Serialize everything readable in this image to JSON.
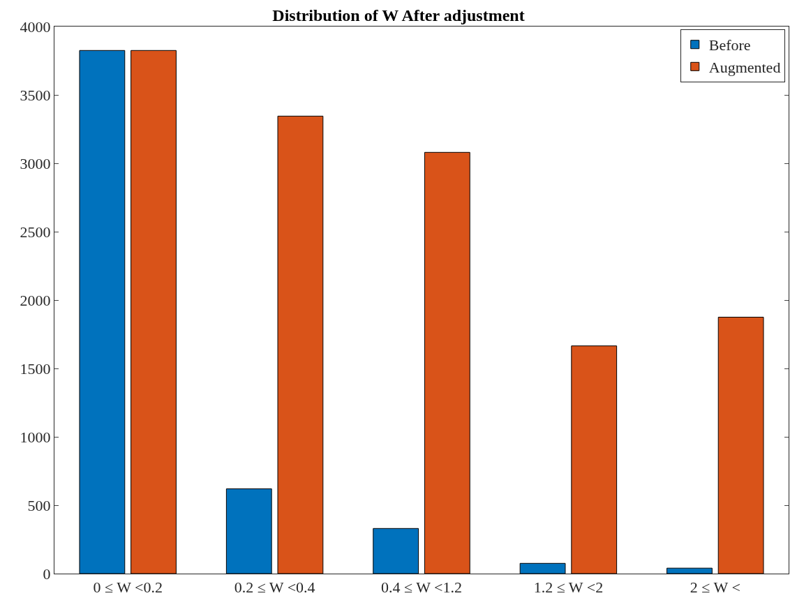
{
  "chart_data": {
    "type": "bar",
    "title": "Distribution of W After adjustment",
    "categories": [
      "0 ≤ W <0.2",
      "0.2 ≤ W <0.4",
      "0.4 ≤ W <1.2",
      "1.2 ≤ W <2",
      "2 ≤ W <"
    ],
    "series": [
      {
        "name": "Before",
        "color": "#0072bd",
        "values": [
          3825,
          620,
          330,
          75,
          40
        ]
      },
      {
        "name": "Augmented",
        "color": "#d95319",
        "values": [
          3825,
          3345,
          3080,
          1665,
          1875
        ]
      }
    ],
    "ylim": [
      0,
      4000
    ],
    "yticks": [
      0,
      500,
      1000,
      1500,
      2000,
      2500,
      3000,
      3500,
      4000
    ],
    "legend": "top right"
  }
}
